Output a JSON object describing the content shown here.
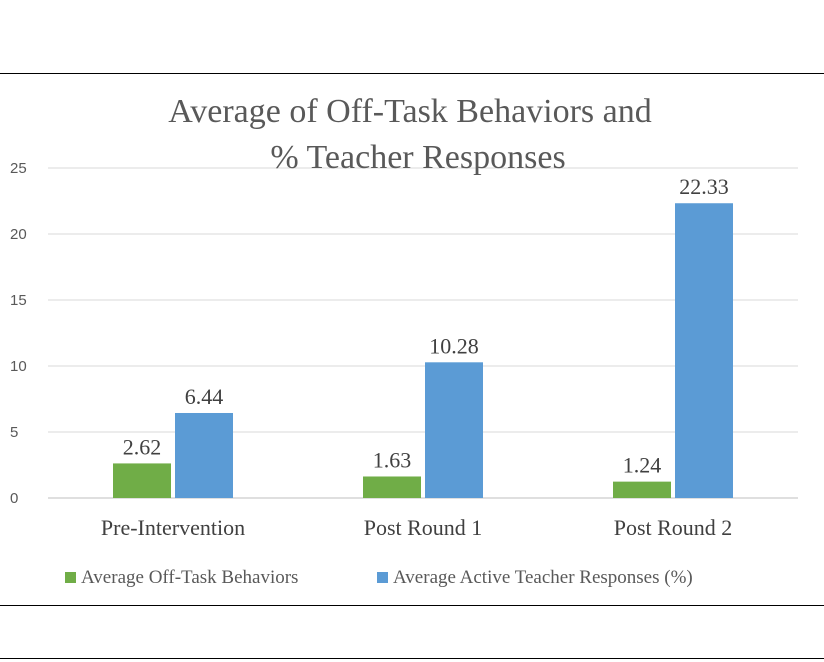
{
  "chart_data": {
    "type": "bar",
    "title_lines": [
      "Average of Off-Task Behaviors and",
      "% Teacher Responses"
    ],
    "categories": [
      "Pre-Intervention",
      "Post Round 1",
      "Post Round 2"
    ],
    "series": [
      {
        "name": "Average Off-Task Behaviors",
        "color": "#70ad47",
        "values": [
          2.62,
          1.63,
          1.24
        ]
      },
      {
        "name": "Average Active Teacher Responses (%)",
        "color": "#5b9bd5",
        "values": [
          6.44,
          10.28,
          22.33
        ]
      }
    ],
    "ylim": [
      0,
      25
    ],
    "yticks": [
      0,
      5,
      10,
      15,
      20,
      25
    ],
    "grid": true,
    "legend": "bottom"
  }
}
